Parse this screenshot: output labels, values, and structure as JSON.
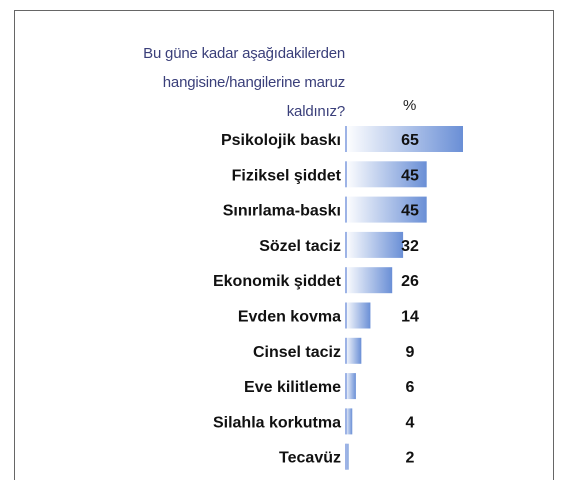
{
  "question": {
    "line1": "Bu güne kadar aşağıdakilerden",
    "line2": "hangisine/hangilerine maruz",
    "line3": "kaldınız?"
  },
  "percent_header": "%",
  "colors": {
    "bar_start": "#ffffff",
    "bar_end": "#6a8fd6",
    "label": "#111111",
    "question": "#3a3f7a",
    "frame": "#666666"
  },
  "chart_data": {
    "type": "bar",
    "orientation": "horizontal",
    "title": "Bu güne kadar aşağıdakilerden hangisine/hangilerine maruz kaldınız?",
    "value_header": "%",
    "categories": [
      "Psikolojik baskı",
      "Fiziksel şiddet",
      "Sınırlama-baskı",
      "Sözel taciz",
      "Ekonomik şiddet",
      "Evden kovma",
      "Cinsel taciz",
      "Eve kilitleme",
      "Silahla korkutma",
      "Tecavüz"
    ],
    "values": [
      65,
      45,
      45,
      32,
      26,
      14,
      9,
      6,
      4,
      2
    ],
    "data_labels": [
      "65",
      "45",
      "45",
      "32",
      "26",
      "14",
      "9",
      "6",
      "4",
      "2"
    ],
    "xlim": [
      0,
      65
    ],
    "grid": false,
    "legend": "none"
  }
}
